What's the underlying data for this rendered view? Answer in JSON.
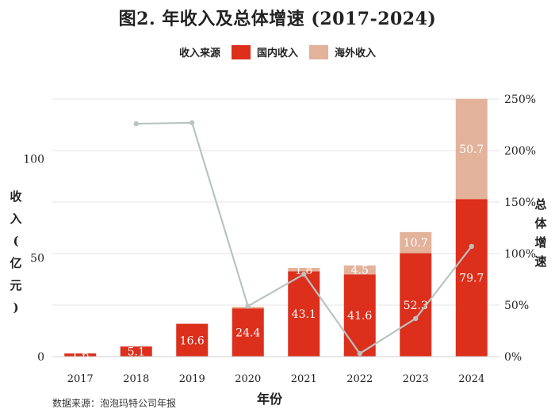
{
  "title": "图2. 年收入及总体增速 (2017-2024)",
  "legend": {
    "title": "收入来源",
    "items": [
      {
        "label": "国内收入",
        "color": "#dc2f1c"
      },
      {
        "label": "海外收入",
        "color": "#e3b29a"
      }
    ]
  },
  "footnote": "数据来源：泡泡玛特公司年报",
  "chart_data": {
    "type": "bar",
    "stacked": true,
    "title": "图2. 年收入及总体增速 (2017-2024)",
    "xlabel": "年份",
    "ylabel": "收入 (亿元)",
    "y2label": "总体增速",
    "categories": [
      "2017",
      "2018",
      "2019",
      "2020",
      "2021",
      "2022",
      "2023",
      "2024"
    ],
    "series": [
      {
        "name": "国内收入",
        "color": "#dc2f1c",
        "values": [
          1.6,
          5.1,
          16.6,
          24.4,
          43.1,
          41.6,
          52.3,
          79.7
        ],
        "labels": [
          "1.6",
          "5.1",
          "16.6",
          "24.4",
          "43.1",
          "41.6",
          "52.3",
          "79.7"
        ]
      },
      {
        "name": "海外收入",
        "color": "#e3b29a",
        "values": [
          0,
          0,
          0,
          0.8,
          1.8,
          4.5,
          10.7,
          50.7
        ],
        "labels": [
          "",
          "",
          "",
          "",
          "1.8",
          "4.5",
          "10.7",
          "50.7"
        ]
      }
    ],
    "growth_line": {
      "name": "总体增速",
      "color": "#b9c4c0",
      "values": [
        null,
        226,
        227,
        49,
        80,
        3,
        37,
        107
      ]
    },
    "ylim": [
      0,
      130
    ],
    "y_ticks": [
      0,
      50,
      100
    ],
    "y2lim": [
      0,
      250
    ],
    "y2_ticks": [
      0,
      50,
      100,
      150,
      200,
      250
    ],
    "y2_tick_labels": [
      "0%",
      "50%",
      "100%",
      "150%",
      "200%",
      "250%"
    ],
    "grid": true,
    "legend_position": "top-center"
  }
}
